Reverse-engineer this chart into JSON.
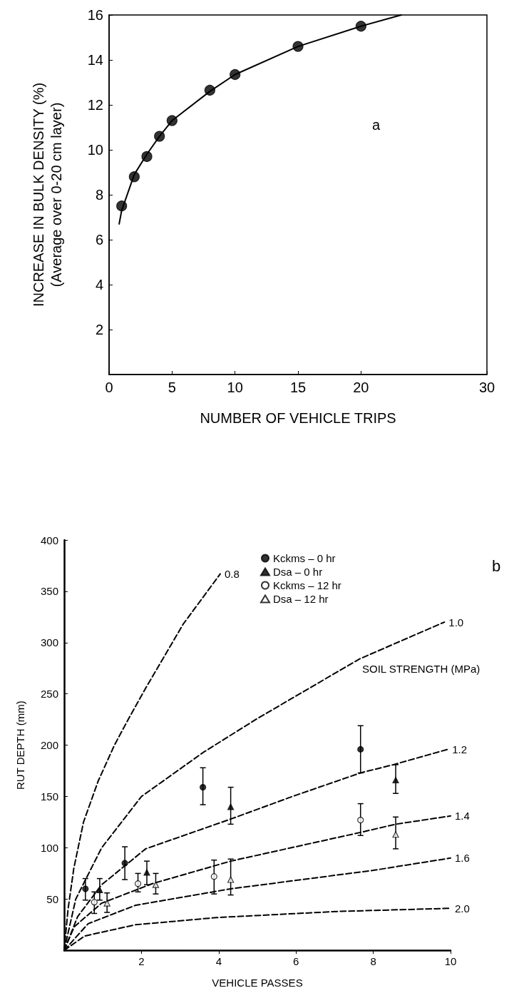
{
  "chart_data": [
    {
      "type": "scatter",
      "xlabel": "NUMBER OF VEHICLE TRIPS",
      "ylabel": "INCREASE IN BULK DENSITY (%)\n(Average over 0-20 cm layer)",
      "annotations": [
        "a"
      ],
      "x": [
        1,
        2,
        3,
        4,
        5,
        8,
        10,
        15,
        20
      ],
      "xlim": [
        0,
        30
      ],
      "xticks": [
        0,
        5,
        10,
        15,
        20,
        30
      ],
      "ylim": [
        0,
        16
      ],
      "yticks": [
        2,
        4,
        6,
        8,
        10,
        12,
        14,
        16
      ],
      "series": [
        {
          "type": "scatter",
          "color": "#000000",
          "marker": "circle",
          "values": [
            7.5,
            8.8,
            9.7,
            10.6,
            11.3,
            12.65,
            13.35,
            14.6,
            15.5
          ]
        },
        {
          "type": "line",
          "color": "#000000",
          "marker": "none",
          "line_style": "solid",
          "x": [
            0.8,
            1,
            2,
            3,
            4,
            5,
            8,
            10,
            15,
            20,
            23.2
          ],
          "values": [
            6.7,
            7.3,
            8.9,
            9.8,
            10.6,
            11.3,
            12.6,
            13.35,
            14.6,
            15.5,
            16
          ]
        }
      ]
    },
    {
      "type": "scatter",
      "xlabel": "VEHICLE PASSES",
      "ylabel": "RUT DEPTH (mm)",
      "annotations": [
        "b",
        "SOIL STRENGTH (MPa)"
      ],
      "legend": "top",
      "xlim": [
        0,
        10
      ],
      "xticks": [
        2,
        4,
        6,
        8,
        10
      ],
      "ylim": [
        0,
        400
      ],
      "yticks": [
        50,
        100,
        150,
        200,
        250,
        300,
        350,
        400
      ],
      "series": [
        {
          "type": "scatter",
          "name": "Kckms – 0 hr",
          "color": "#000000",
          "marker": "circle",
          "x": [
            0.55,
            1.57,
            3.59,
            7.67
          ],
          "values": [
            60,
            85,
            159,
            196
          ],
          "errors": [
            [
              49,
              70
            ],
            [
              69,
              101
            ],
            [
              142,
              178
            ],
            [
              173,
              219
            ]
          ]
        },
        {
          "type": "scatter",
          "name": "Dsa – 0 hr",
          "color": "#000000",
          "marker": "triangle",
          "x": [
            0.92,
            2.14,
            4.31,
            8.58
          ],
          "values": [
            59,
            76,
            140,
            166
          ],
          "errors": [
            [
              49,
              70
            ],
            [
              64,
              87
            ],
            [
              123,
              159
            ],
            [
              153,
              181
            ]
          ]
        },
        {
          "type": "scatter",
          "name": "Kckms – 12 hr",
          "color": "#ffffff",
          "marker": "circle",
          "x": [
            0.78,
            1.91,
            3.88,
            7.67
          ],
          "values": [
            47,
            65,
            72,
            127
          ],
          "errors": [
            [
              36,
              57
            ],
            [
              57,
              75
            ],
            [
              55,
              88
            ],
            [
              112,
              143
            ]
          ]
        },
        {
          "type": "scatter",
          "name": "Dsa – 12 hr",
          "color": "#ffffff",
          "marker": "triangle",
          "x": [
            1.11,
            2.37,
            4.31,
            8.58
          ],
          "values": [
            46,
            64,
            69,
            113
          ],
          "errors": [
            [
              37,
              56
            ],
            [
              55,
              75
            ],
            [
              54,
              89
            ],
            [
              99,
              130
            ]
          ]
        },
        {
          "type": "line",
          "name": "0.8",
          "color": "#000000",
          "marker": "none",
          "line_style": "dashed",
          "x": [
            0,
            0.1,
            0.25,
            0.5,
            0.88,
            1.3,
            1.67,
            2.1,
            3.08,
            4.04
          ],
          "values": [
            0,
            40,
            80,
            125,
            165,
            200,
            226,
            255,
            318,
            367
          ]
        },
        {
          "type": "line",
          "name": "1.0",
          "color": "#000000",
          "marker": "none",
          "line_style": "dashed",
          "x": [
            0,
            0.3,
            0.97,
            2.0,
            3.6,
            5.0,
            7.64,
            9.84
          ],
          "values": [
            0,
            50,
            100,
            150,
            193,
            226,
            284,
            320
          ]
        },
        {
          "type": "line",
          "name": "1.2",
          "color": "#000000",
          "marker": "none",
          "line_style": "dashed",
          "x": [
            0,
            0.35,
            0.97,
            2.11,
            4.31,
            5.98,
            7.67,
            8.52,
            9.93
          ],
          "values": [
            0,
            33,
            64,
            99,
            128,
            151,
            173,
            181,
            196
          ]
        },
        {
          "type": "line",
          "name": "1.4",
          "color": "#000000",
          "marker": "none",
          "line_style": "dashed",
          "x": [
            0,
            0.26,
            0.97,
            2.28,
            4.31,
            7.67,
            8.58,
            10
          ],
          "values": [
            0,
            23,
            46,
            65,
            87,
            115,
            123,
            131
          ]
        },
        {
          "type": "line",
          "name": "1.6",
          "color": "#000000",
          "marker": "none",
          "line_style": "dashed",
          "x": [
            0,
            0.62,
            1.85,
            4.31,
            8.0,
            10
          ],
          "values": [
            0,
            26,
            44,
            60,
            78,
            90
          ]
        },
        {
          "type": "line",
          "name": "2.0",
          "color": "#000000",
          "marker": "none",
          "line_style": "dashed",
          "x": [
            0,
            0.53,
            1.85,
            3.95,
            7.1,
            10
          ],
          "values": [
            0,
            14,
            25,
            32,
            38,
            41
          ]
        }
      ]
    }
  ]
}
